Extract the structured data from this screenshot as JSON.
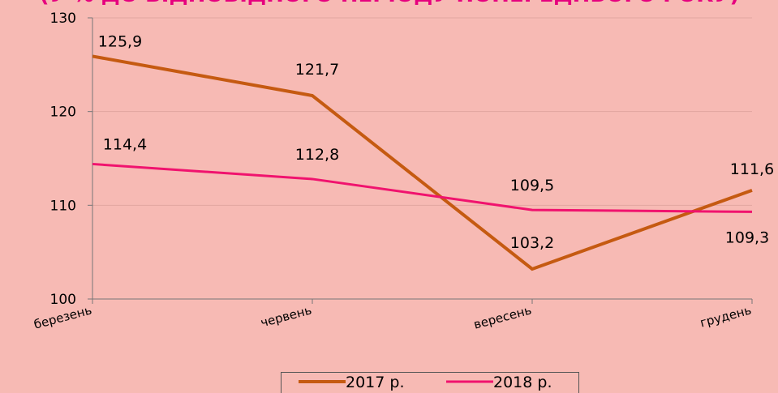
{
  "chart_data": {
    "type": "line",
    "title": "(У % ДО ВІДПОВІДНОГО ПЕРІОДУ ПОПЕРЕДНЬОГО РОКУ)",
    "categories": [
      "березень",
      "червень",
      "вересень",
      "грудень"
    ],
    "series": [
      {
        "name": "2017 р.",
        "color": "#c55a11",
        "values": [
          125.9,
          121.7,
          103.2,
          111.6
        ],
        "value_labels": [
          "125,9",
          "121,7",
          "103,2",
          "111,6"
        ]
      },
      {
        "name": "2018 р.",
        "color": "#f0136e",
        "values": [
          114.4,
          112.8,
          109.5,
          109.3
        ],
        "value_labels": [
          "114,4",
          "112,8",
          "109,5",
          "109,3"
        ]
      }
    ],
    "ylim": [
      100,
      130
    ],
    "yticks": [
      100,
      110,
      120,
      130
    ],
    "grid": true,
    "legend": "bottom"
  }
}
